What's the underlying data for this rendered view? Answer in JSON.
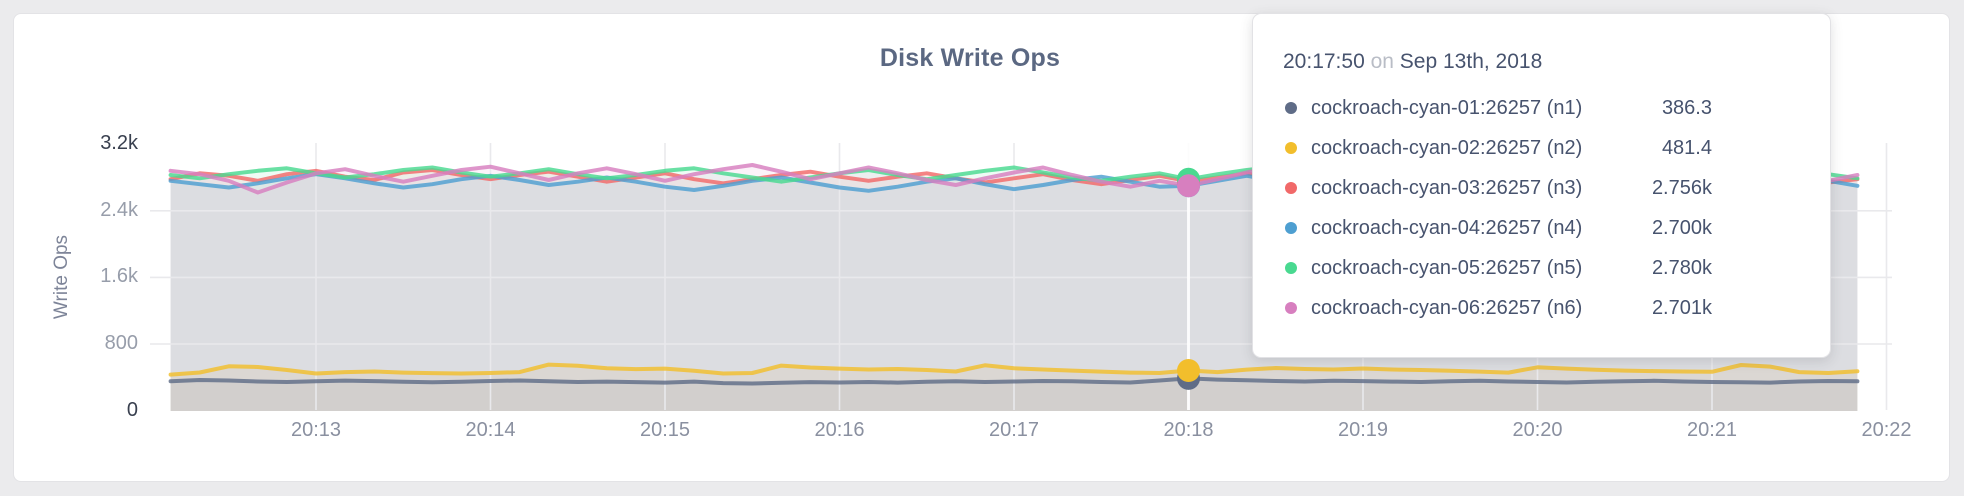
{
  "chart_data": {
    "type": "line",
    "title": "Disk Write Ops",
    "ylabel": "Write Ops",
    "xlabel": "",
    "ylim": [
      0,
      3200
    ],
    "grid": true,
    "legend": "tooltip-only",
    "y_ticks": [
      {
        "label": "0",
        "value": 0
      },
      {
        "label": "800",
        "value": 800
      },
      {
        "label": "1.6k",
        "value": 1600
      },
      {
        "label": "2.4k",
        "value": 2400
      },
      {
        "label": "3.2k",
        "value": 3200
      }
    ],
    "x_ticks": [
      "20:13",
      "20:14",
      "20:15",
      "20:16",
      "20:17",
      "20:18",
      "20:19",
      "20:20",
      "20:21",
      "20:22"
    ],
    "x_start_time": "20:12:10",
    "x_step_seconds": 10,
    "series": [
      {
        "name": "cockroach-cyan-01:26257 (n1)",
        "color": "#5F6C87",
        "values": [
          352,
          368,
          362,
          350,
          344,
          352,
          360,
          354,
          346,
          340,
          346,
          356,
          362,
          352,
          344,
          348,
          342,
          336,
          348,
          330,
          326,
          334,
          342,
          338,
          344,
          336,
          346,
          352,
          344,
          350,
          356,
          352,
          344,
          338,
          362,
          386.3,
          372,
          364,
          356,
          350,
          358,
          354,
          348,
          344,
          352,
          358,
          350,
          344,
          338,
          346,
          352,
          358,
          350,
          344,
          340,
          336,
          350,
          356,
          352
        ]
      },
      {
        "name": "cockroach-cyan-02:26257 (n2)",
        "color": "#F2BE2C",
        "values": [
          432,
          458,
          532,
          524,
          488,
          446,
          462,
          470,
          456,
          450,
          446,
          452,
          462,
          552,
          538,
          508,
          498,
          504,
          478,
          446,
          452,
          540,
          518,
          504,
          494,
          500,
          488,
          470,
          544,
          508,
          494,
          480,
          468,
          456,
          452,
          481.4,
          462,
          492,
          512,
          500,
          494,
          506,
          494,
          488,
          478,
          468,
          456,
          520,
          504,
          490,
          480,
          474,
          470,
          466,
          548,
          528,
          462,
          452,
          472
        ]
      },
      {
        "name": "cockroach-cyan-03:26257 (n3)",
        "color": "#F16969",
        "values": [
          2780,
          2850,
          2820,
          2760,
          2840,
          2880,
          2810,
          2770,
          2860,
          2890,
          2830,
          2780,
          2830,
          2870,
          2810,
          2750,
          2800,
          2850,
          2780,
          2730,
          2780,
          2830,
          2870,
          2810,
          2760,
          2810,
          2850,
          2790,
          2740,
          2790,
          2840,
          2770,
          2720,
          2770,
          2820,
          2756,
          2800,
          2850,
          2790,
          2730,
          2780,
          2670,
          2720,
          2770,
          2810,
          2750,
          2700,
          2750,
          2800,
          2840,
          2770,
          2720,
          2770,
          2900,
          2820,
          2750,
          2800,
          2740,
          2780
        ]
      },
      {
        "name": "cockroach-cyan-04:26257 (n4)",
        "color": "#4E9FD1",
        "values": [
          2760,
          2720,
          2680,
          2730,
          2790,
          2840,
          2790,
          2730,
          2680,
          2720,
          2780,
          2820,
          2770,
          2710,
          2750,
          2800,
          2750,
          2690,
          2650,
          2700,
          2760,
          2800,
          2740,
          2680,
          2640,
          2690,
          2750,
          2790,
          2720,
          2660,
          2710,
          2770,
          2810,
          2750,
          2690,
          2700,
          2760,
          2820,
          2760,
          2700,
          2660,
          2710,
          2770,
          2800,
          2740,
          2680,
          2730,
          2780,
          2720,
          2660,
          2710,
          2770,
          2720,
          2670,
          2730,
          2790,
          2820,
          2760,
          2700
        ]
      },
      {
        "name": "cockroach-cyan-05:26257 (n5)",
        "color": "#49D990",
        "values": [
          2830,
          2790,
          2840,
          2880,
          2910,
          2850,
          2800,
          2840,
          2890,
          2920,
          2860,
          2810,
          2850,
          2900,
          2840,
          2790,
          2830,
          2880,
          2910,
          2850,
          2800,
          2750,
          2800,
          2850,
          2890,
          2830,
          2780,
          2830,
          2880,
          2920,
          2860,
          2800,
          2760,
          2810,
          2850,
          2780,
          2840,
          2890,
          2930,
          2870,
          2810,
          2850,
          2890,
          2830,
          2780,
          2820,
          2870,
          2810,
          2760,
          2800,
          2850,
          2880,
          2830,
          2780,
          2820,
          2860,
          2900,
          2840,
          2790
        ]
      },
      {
        "name": "cockroach-cyan-06:26257 (n6)",
        "color": "#D77FBF",
        "values": [
          2880,
          2840,
          2760,
          2620,
          2740,
          2850,
          2900,
          2820,
          2750,
          2820,
          2890,
          2930,
          2850,
          2770,
          2850,
          2910,
          2840,
          2760,
          2840,
          2900,
          2950,
          2870,
          2780,
          2850,
          2920,
          2850,
          2770,
          2710,
          2790,
          2860,
          2920,
          2830,
          2750,
          2690,
          2760,
          2701,
          2780,
          2860,
          2930,
          2850,
          2760,
          2690,
          2770,
          2850,
          2910,
          2830,
          2740,
          2810,
          2890,
          2940,
          2850,
          2760,
          2690,
          2770,
          2850,
          2920,
          2840,
          2760,
          2830
        ]
      }
    ]
  },
  "tooltip": {
    "time": "20:17:50",
    "separator": "on",
    "date": "Sep 13th, 2018",
    "hover_index": 35,
    "rows": [
      {
        "label": "cockroach-cyan-01:26257 (n1)",
        "value": "386.3",
        "color": "#5F6C87"
      },
      {
        "label": "cockroach-cyan-02:26257 (n2)",
        "value": "481.4",
        "color": "#F2BE2C"
      },
      {
        "label": "cockroach-cyan-03:26257 (n3)",
        "value": "2.756k",
        "color": "#F16969"
      },
      {
        "label": "cockroach-cyan-04:26257 (n4)",
        "value": "2.700k",
        "color": "#4E9FD1"
      },
      {
        "label": "cockroach-cyan-05:26257 (n5)",
        "value": "2.780k",
        "color": "#49D990"
      },
      {
        "label": "cockroach-cyan-06:26257 (n6)",
        "value": "2.701k",
        "color": "#D77FBF"
      }
    ]
  }
}
